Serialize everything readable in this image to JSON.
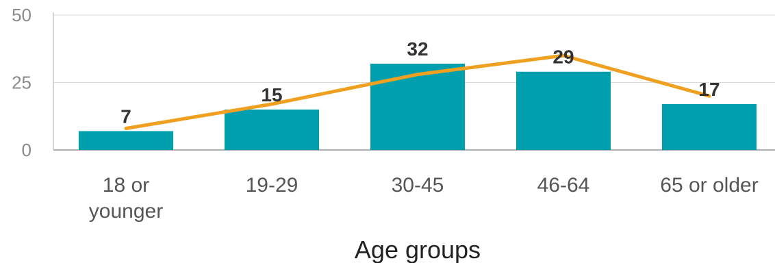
{
  "chart_data": {
    "type": "bar",
    "categories": [
      [
        "18 or",
        "younger"
      ],
      [
        "19-29"
      ],
      [
        "30-45"
      ],
      [
        "46-64"
      ],
      [
        "65 or older"
      ]
    ],
    "series": [
      {
        "type": "bar",
        "values": [
          7,
          15,
          32,
          29,
          17
        ],
        "color": "#009fae"
      },
      {
        "type": "line",
        "values": [
          8,
          17,
          28,
          35,
          20
        ],
        "color": "#f0a020"
      }
    ],
    "data_labels": [
      "7",
      "15",
      "32",
      "29",
      "17"
    ],
    "yticks": [
      "0",
      "25",
      "50"
    ],
    "ylim": [
      0,
      50
    ],
    "xlabel": "Age groups",
    "grid": true
  }
}
